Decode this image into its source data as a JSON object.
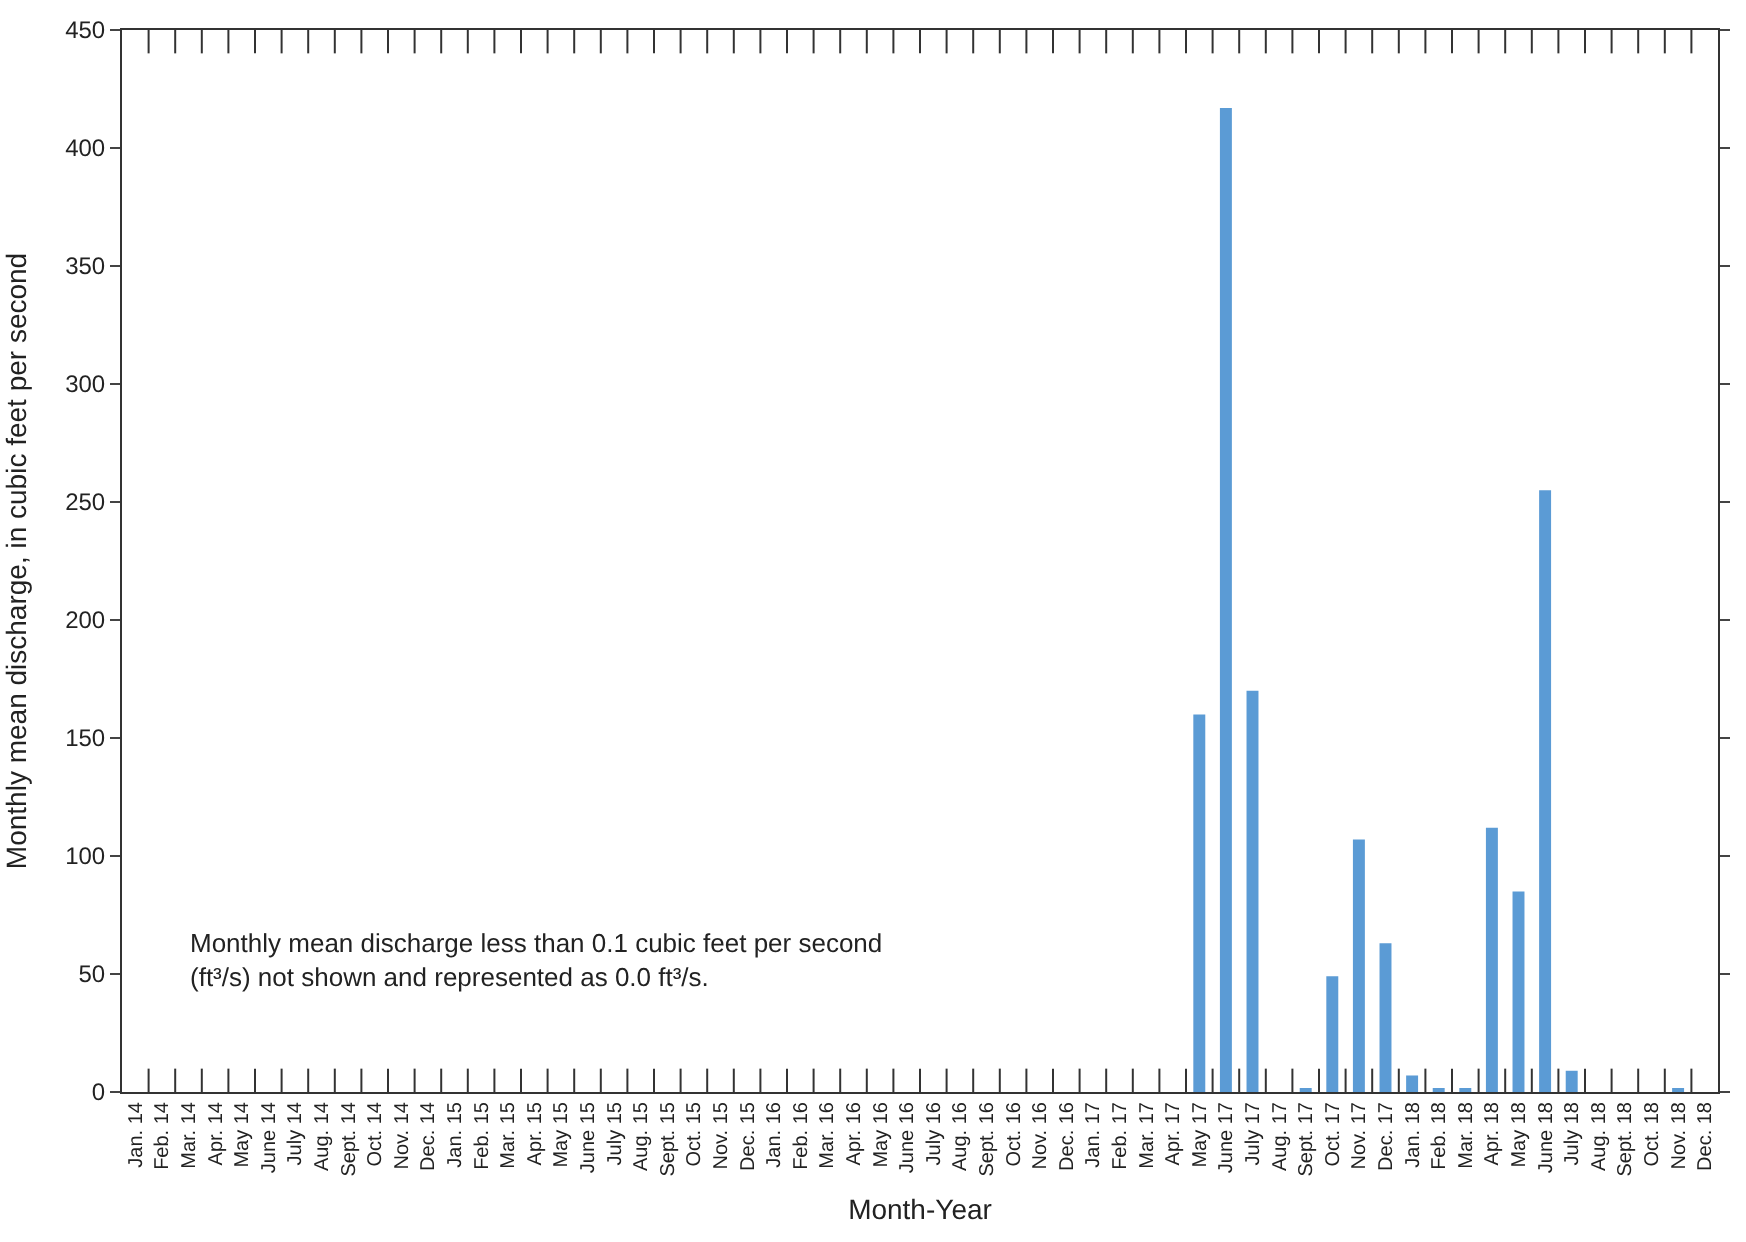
{
  "chart_data": {
    "type": "bar",
    "xlabel": "Month-Year",
    "ylabel": "Monthly mean discharge, in cubic feet per second",
    "categories": [
      "Jan. 14",
      "Feb. 14",
      "Mar. 14",
      "Apr. 14",
      "May 14",
      "June 14",
      "July 14",
      "Aug. 14",
      "Sept. 14",
      "Oct. 14",
      "Nov. 14",
      "Dec. 14",
      "Jan. 15",
      "Feb. 15",
      "Mar. 15",
      "Apr. 15",
      "May 15",
      "June 15",
      "July 15",
      "Aug. 15",
      "Sept. 15",
      "Oct. 15",
      "Nov. 15",
      "Dec. 15",
      "Jan. 16",
      "Feb. 16",
      "Mar. 16",
      "Apr. 16",
      "May 16",
      "June 16",
      "July 16",
      "Aug. 16",
      "Sept. 16",
      "Oct. 16",
      "Nov. 16",
      "Dec. 16",
      "Jan. 17",
      "Feb. 17",
      "Mar. 17",
      "Apr. 17",
      "May 17",
      "June 17",
      "July 17",
      "Aug. 17",
      "Sept. 17",
      "Oct. 17",
      "Nov. 17",
      "Dec. 17",
      "Jan. 18",
      "Feb. 18",
      "Mar. 18",
      "Apr. 18",
      "May 18",
      "June 18",
      "July 18",
      "Aug. 18",
      "Sept. 18",
      "Oct. 18",
      "Nov. 18",
      "Dec. 18"
    ],
    "series": [
      {
        "color": "#5b9bd5",
        "values": [
          0,
          0,
          0,
          0,
          0,
          0,
          0,
          0,
          0,
          0,
          0,
          0,
          0,
          0,
          0,
          0,
          0,
          0,
          0,
          0,
          0,
          0,
          0,
          0,
          0,
          0,
          0,
          0,
          0,
          0,
          0,
          0,
          0,
          0,
          0,
          0,
          0,
          0,
          0,
          0,
          160,
          417,
          170,
          0,
          1,
          49,
          107,
          63,
          7,
          1,
          1,
          112,
          85,
          255,
          9,
          0,
          0,
          0,
          1,
          0
        ]
      }
    ],
    "ylim": [
      0,
      450
    ],
    "yticks": [
      0,
      50,
      100,
      150,
      200,
      250,
      300,
      350,
      400,
      450
    ],
    "annotations": [
      "Monthly mean discharge less than 0.1 cubic feet per second (ft³/s) not shown and represented as 0.0 ft³/s."
    ]
  }
}
